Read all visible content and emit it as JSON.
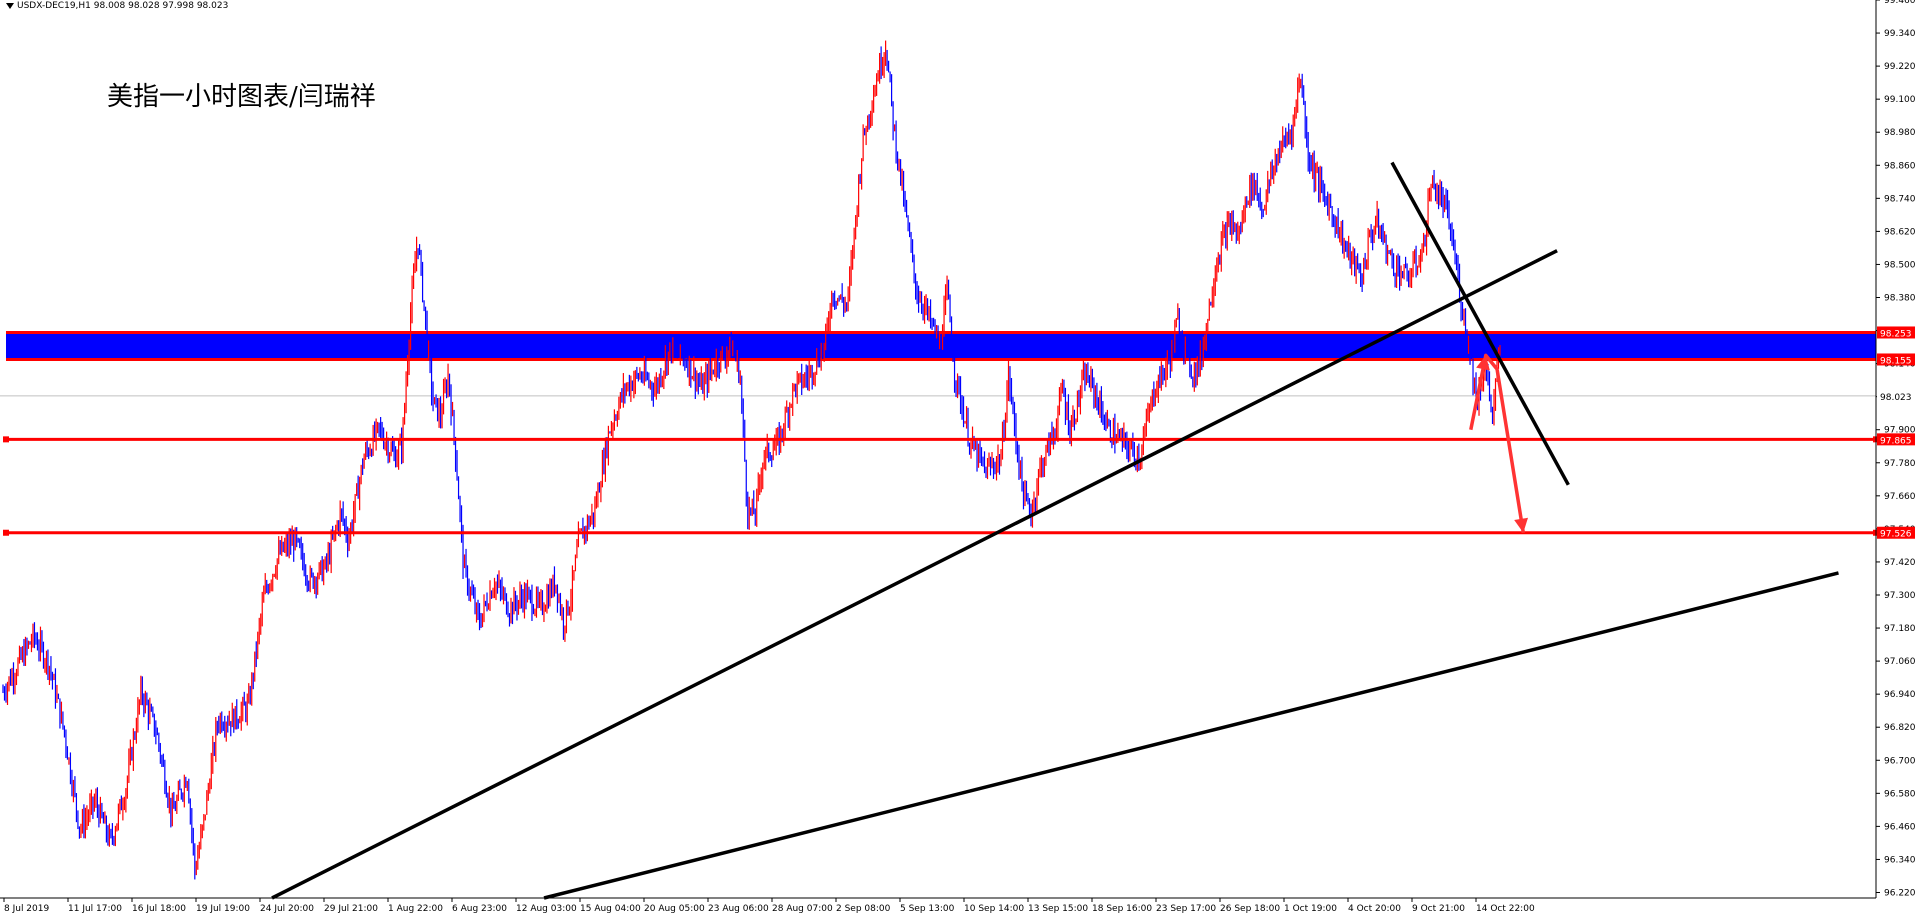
{
  "header": {
    "symbol_line": "USDX-DEC19,H1  98.008 98.028 97.998 98.023"
  },
  "annotation": "美指一小时图表/闫瑞祥",
  "colors": {
    "bull_bar": "#ff0000",
    "bear_bar": "#0000ff",
    "zone_fill": "#0000ff",
    "level_line": "#ff0000",
    "trend_line": "#000000",
    "arrow": "#ff3333",
    "grid_frame": "#000000",
    "current_price_line": "#c0c0c0"
  },
  "chart_data": {
    "type": "candlestick",
    "timeframe": "H1",
    "ylim": [
      96.2,
      99.46
    ],
    "y_ticks": [
      "99.460",
      "99.340",
      "99.220",
      "99.100",
      "98.980",
      "98.860",
      "98.740",
      "98.620",
      "98.500",
      "98.380",
      "98.260",
      "98.140",
      "98.020",
      "97.900",
      "97.780",
      "97.660",
      "97.540",
      "97.420",
      "97.300",
      "97.180",
      "97.060",
      "96.940",
      "96.820",
      "96.700",
      "96.580",
      "96.460",
      "96.340",
      "96.220"
    ],
    "x_labels": [
      "8 Jul 2019",
      "11 Jul 17:00",
      "16 Jul 18:00",
      "19 Jul 19:00",
      "24 Jul 20:00",
      "29 Jul 21:00",
      "1 Aug 22:00",
      "6 Aug 23:00",
      "12 Aug 03:00",
      "15 Aug 04:00",
      "20 Aug 05:00",
      "23 Aug 06:00",
      "28 Aug 07:00",
      "2 Sep 08:00",
      "5 Sep 13:00",
      "10 Sep 14:00",
      "13 Sep 15:00",
      "18 Sep 16:00",
      "23 Sep 17:00",
      "26 Sep 18:00",
      "1 Oct 19:00",
      "4 Oct 20:00",
      "9 Oct 21:00",
      "14 Oct 22:00"
    ],
    "close_path": [
      [
        0,
        96.95
      ],
      [
        8,
        97.15
      ],
      [
        12,
        97.05
      ],
      [
        16,
        96.8
      ],
      [
        20,
        96.45
      ],
      [
        24,
        96.55
      ],
      [
        28,
        96.4
      ],
      [
        32,
        96.6
      ],
      [
        36,
        96.95
      ],
      [
        40,
        96.8
      ],
      [
        44,
        96.5
      ],
      [
        48,
        96.65
      ],
      [
        50,
        96.3
      ],
      [
        52,
        96.45
      ],
      [
        56,
        96.85
      ],
      [
        60,
        96.85
      ],
      [
        64,
        96.9
      ],
      [
        68,
        97.3
      ],
      [
        72,
        97.45
      ],
      [
        76,
        97.5
      ],
      [
        80,
        97.35
      ],
      [
        84,
        97.4
      ],
      [
        88,
        97.6
      ],
      [
        90,
        97.5
      ],
      [
        94,
        97.8
      ],
      [
        98,
        97.9
      ],
      [
        102,
        97.8
      ],
      [
        104,
        97.85
      ],
      [
        106,
        98.3
      ],
      [
        108,
        98.6
      ],
      [
        110,
        98.3
      ],
      [
        112,
        98.0
      ],
      [
        114,
        97.95
      ],
      [
        116,
        98.1
      ],
      [
        118,
        97.8
      ],
      [
        120,
        97.4
      ],
      [
        122,
        97.3
      ],
      [
        124,
        97.2
      ],
      [
        128,
        97.35
      ],
      [
        132,
        97.25
      ],
      [
        136,
        97.3
      ],
      [
        140,
        97.25
      ],
      [
        144,
        97.35
      ],
      [
        146,
        97.2
      ],
      [
        148,
        97.3
      ],
      [
        150,
        97.5
      ],
      [
        154,
        97.6
      ],
      [
        158,
        97.9
      ],
      [
        162,
        98.05
      ],
      [
        166,
        98.1
      ],
      [
        170,
        98.05
      ],
      [
        174,
        98.2
      ],
      [
        178,
        98.15
      ],
      [
        182,
        98.05
      ],
      [
        186,
        98.15
      ],
      [
        190,
        98.2
      ],
      [
        192,
        98.1
      ],
      [
        194,
        97.6
      ],
      [
        196,
        97.6
      ],
      [
        198,
        97.8
      ],
      [
        202,
        97.85
      ],
      [
        206,
        98.05
      ],
      [
        210,
        98.1
      ],
      [
        214,
        98.2
      ],
      [
        216,
        98.4
      ],
      [
        220,
        98.35
      ],
      [
        224,
        98.95
      ],
      [
        228,
        99.2
      ],
      [
        230,
        99.3
      ],
      [
        232,
        99.0
      ],
      [
        234,
        98.8
      ],
      [
        236,
        98.6
      ],
      [
        238,
        98.4
      ],
      [
        240,
        98.35
      ],
      [
        244,
        98.2
      ],
      [
        246,
        98.4
      ],
      [
        248,
        98.1
      ],
      [
        252,
        97.85
      ],
      [
        256,
        97.75
      ],
      [
        260,
        97.8
      ],
      [
        262,
        98.1
      ],
      [
        264,
        97.85
      ],
      [
        266,
        97.65
      ],
      [
        268,
        97.6
      ],
      [
        270,
        97.75
      ],
      [
        274,
        97.9
      ],
      [
        276,
        98.05
      ],
      [
        278,
        97.9
      ],
      [
        282,
        98.1
      ],
      [
        284,
        98.05
      ],
      [
        288,
        97.9
      ],
      [
        292,
        97.85
      ],
      [
        296,
        97.8
      ],
      [
        300,
        98.05
      ],
      [
        304,
        98.15
      ],
      [
        306,
        98.3
      ],
      [
        308,
        98.2
      ],
      [
        310,
        98.1
      ],
      [
        312,
        98.15
      ],
      [
        316,
        98.5
      ],
      [
        318,
        98.6
      ],
      [
        320,
        98.65
      ],
      [
        322,
        98.6
      ],
      [
        324,
        98.75
      ],
      [
        326,
        98.8
      ],
      [
        328,
        98.7
      ],
      [
        332,
        98.9
      ],
      [
        336,
        99.0
      ],
      [
        338,
        99.2
      ],
      [
        340,
        98.9
      ],
      [
        344,
        98.75
      ],
      [
        346,
        98.7
      ],
      [
        350,
        98.55
      ],
      [
        352,
        98.5
      ],
      [
        354,
        98.45
      ],
      [
        356,
        98.6
      ],
      [
        358,
        98.65
      ],
      [
        362,
        98.5
      ],
      [
        366,
        98.45
      ],
      [
        370,
        98.55
      ],
      [
        372,
        98.8
      ],
      [
        374,
        98.75
      ],
      [
        376,
        98.7
      ],
      [
        378,
        98.55
      ],
      [
        380,
        98.35
      ],
      [
        382,
        98.2
      ],
      [
        384,
        98.0
      ],
      [
        386,
        98.15
      ],
      [
        388,
        97.95
      ],
      [
        390,
        98.2
      ]
    ],
    "zone": {
      "top": 98.253,
      "bottom": 98.155
    },
    "levels": [
      97.865,
      97.526
    ],
    "price_labels": {
      "zone_top": "98.253",
      "zone_bottom": "98.155",
      "current": "98.023",
      "level_1": "97.865",
      "level_2": "97.526"
    },
    "current_price": 98.023,
    "trendlines": [
      {
        "name": "rising-support-1",
        "from": [
          0.145,
          96.2
        ],
        "to": [
          0.83,
          98.55
        ]
      },
      {
        "name": "rising-support-2",
        "from": [
          0.29,
          96.2
        ],
        "to": [
          0.98,
          97.38
        ]
      },
      {
        "name": "falling-resistance",
        "from": [
          0.742,
          98.87
        ],
        "to": [
          0.836,
          97.7
        ]
      }
    ],
    "arrow_path": [
      [
        0.784,
        97.9
      ],
      [
        0.792,
        98.17
      ],
      [
        0.798,
        98.12
      ],
      [
        0.812,
        97.526
      ]
    ]
  }
}
